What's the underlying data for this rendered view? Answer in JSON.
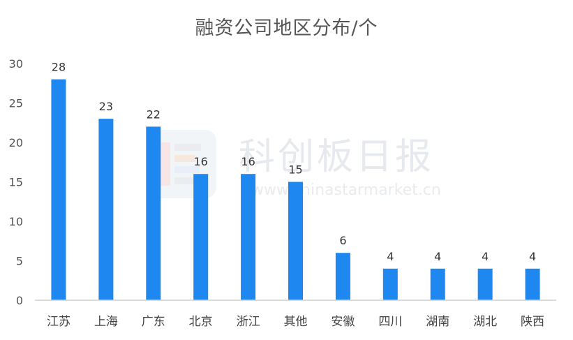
{
  "chart_data": {
    "type": "bar",
    "title": "融资公司地区分布/个",
    "categories": [
      "江苏",
      "上海",
      "广东",
      "北京",
      "浙江",
      "其他",
      "安徽",
      "四川",
      "湖南",
      "湖北",
      "陕西"
    ],
    "values": [
      28,
      23,
      22,
      16,
      16,
      15,
      6,
      4,
      4,
      4,
      4
    ],
    "ylim": [
      0,
      30
    ],
    "yticks": [
      0,
      5,
      10,
      15,
      20,
      25,
      30
    ],
    "grid": false,
    "legend": "none",
    "bar_color": "#1f88f0",
    "data_labels": true
  },
  "watermark": {
    "brand": "科创板日报",
    "url": "www.chinastarmarket.cn"
  }
}
